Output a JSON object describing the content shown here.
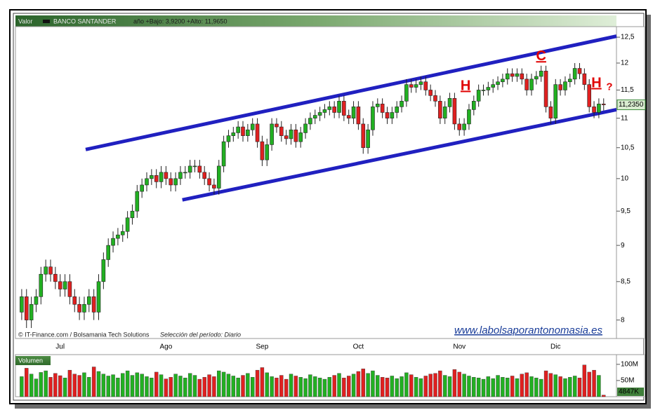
{
  "chart_data": [
    {
      "type": "candlestick",
      "label": "Valor",
      "title": "BANCO SANTANDER",
      "subtitle": "año +Bajo: 3,9200 +Alto: 11,9650",
      "footer": "© IT-Finance.com / Bolsamania Tech Solutions",
      "period": "Selección del período: Diario",
      "watermark": "www.labolsaporantonomasia.es",
      "log_scale": true,
      "up_color": "#22b022",
      "down_color": "#e02020",
      "line_color": "#2020c0",
      "annotation_color": "#e00000",
      "ylim": [
        7.77,
        12.71
      ],
      "yticks": [
        8,
        {
          "value": 8.5,
          "label": "8,5"
        },
        9,
        {
          "value": 9.5,
          "label": "9,5"
        },
        10,
        {
          "value": 10.5,
          "label": "10,5"
        },
        11,
        {
          "value": 11.5,
          "label": "11,5"
        },
        12,
        {
          "value": 12.5,
          "label": "12,5"
        }
      ],
      "categories": [
        null,
        null,
        null,
        null,
        null,
        null,
        null,
        null,
        "Jul",
        null,
        null,
        null,
        null,
        null,
        null,
        null,
        null,
        null,
        null,
        null,
        null,
        null,
        null,
        null,
        null,
        null,
        null,
        null,
        null,
        null,
        "Ago",
        null,
        null,
        null,
        null,
        null,
        null,
        null,
        null,
        null,
        null,
        null,
        null,
        null,
        null,
        null,
        null,
        null,
        null,
        null,
        "Sep",
        null,
        null,
        null,
        null,
        null,
        null,
        null,
        null,
        null,
        null,
        null,
        null,
        null,
        null,
        null,
        null,
        null,
        null,
        null,
        "Oct",
        null,
        null,
        null,
        null,
        null,
        null,
        null,
        null,
        null,
        null,
        null,
        null,
        null,
        null,
        null,
        null,
        null,
        null,
        null,
        null,
        "Nov",
        null,
        null,
        null,
        null,
        null,
        null,
        null,
        null,
        null,
        null,
        null,
        null,
        null,
        null,
        null,
        null,
        null,
        null,
        null,
        "Dic",
        null,
        null,
        null,
        null,
        null,
        null,
        null,
        null,
        null,
        null
      ],
      "open": [
        8.1,
        8.3,
        8.0,
        8.2,
        8.3,
        8.6,
        8.7,
        8.6,
        8.5,
        8.4,
        8.5,
        8.3,
        8.2,
        8.1,
        8.2,
        8.3,
        8.1,
        8.5,
        8.8,
        9.0,
        9.1,
        9.15,
        9.2,
        9.4,
        9.5,
        9.8,
        9.9,
        10.0,
        10.05,
        9.95,
        10.1,
        10.0,
        9.9,
        10.0,
        10.1,
        10.1,
        10.2,
        10.2,
        10.1,
        10.0,
        9.9,
        9.85,
        10.2,
        10.6,
        10.7,
        10.75,
        10.85,
        10.7,
        10.8,
        10.9,
        10.6,
        10.3,
        10.55,
        10.9,
        10.85,
        10.7,
        10.65,
        10.8,
        10.6,
        10.75,
        10.9,
        11.0,
        11.05,
        11.1,
        11.15,
        11.2,
        11.1,
        11.3,
        11.05,
        11.0,
        11.2,
        10.9,
        10.5,
        10.8,
        11.2,
        11.25,
        11.1,
        11.0,
        11.1,
        11.2,
        11.3,
        11.6,
        11.55,
        11.6,
        11.65,
        11.5,
        11.4,
        11.3,
        11.0,
        11.2,
        11.35,
        10.9,
        10.8,
        10.9,
        11.15,
        11.3,
        11.5,
        11.5,
        11.55,
        11.6,
        11.65,
        11.7,
        11.8,
        11.75,
        11.8,
        11.7,
        11.5,
        11.7,
        11.75,
        11.85,
        11.2,
        11.0,
        11.6,
        11.5,
        11.65,
        11.7,
        11.9,
        11.8,
        11.6,
        11.2,
        11.1,
        11.25
      ],
      "high": [
        8.4,
        8.4,
        8.3,
        8.4,
        8.7,
        8.8,
        8.8,
        8.7,
        8.6,
        8.6,
        8.6,
        8.4,
        8.3,
        8.3,
        8.4,
        8.4,
        8.6,
        8.9,
        9.1,
        9.2,
        9.25,
        9.3,
        9.5,
        9.6,
        9.9,
        10.0,
        10.1,
        10.15,
        10.15,
        10.2,
        10.2,
        10.1,
        10.1,
        10.2,
        10.2,
        10.3,
        10.3,
        10.3,
        10.2,
        10.1,
        10.0,
        10.3,
        10.7,
        10.8,
        10.85,
        10.95,
        10.95,
        10.9,
        11.0,
        11.0,
        10.7,
        10.65,
        11.0,
        11.0,
        10.95,
        10.8,
        10.9,
        10.9,
        10.85,
        11.0,
        11.1,
        11.15,
        11.2,
        11.25,
        11.3,
        11.3,
        11.4,
        11.4,
        11.15,
        11.3,
        11.3,
        11.0,
        10.9,
        11.3,
        11.35,
        11.35,
        11.2,
        11.2,
        11.3,
        11.4,
        11.7,
        11.7,
        11.7,
        11.75,
        11.75,
        11.6,
        11.5,
        11.4,
        11.3,
        11.45,
        11.45,
        11.0,
        11.0,
        11.25,
        11.4,
        11.6,
        11.6,
        11.65,
        11.7,
        11.75,
        11.8,
        11.9,
        11.9,
        11.9,
        11.9,
        11.8,
        11.8,
        11.85,
        11.95,
        11.95,
        11.3,
        11.7,
        11.7,
        11.75,
        11.8,
        12.0,
        12.0,
        11.9,
        11.7,
        11.3,
        11.35,
        11.35
      ],
      "low": [
        8.0,
        7.9,
        7.9,
        8.1,
        8.2,
        8.5,
        8.5,
        8.4,
        8.3,
        8.3,
        8.2,
        8.1,
        8.0,
        8.0,
        8.1,
        8.0,
        8.0,
        8.4,
        8.7,
        8.9,
        9.0,
        9.05,
        9.1,
        9.3,
        9.4,
        9.7,
        9.8,
        9.9,
        9.85,
        9.85,
        9.9,
        9.8,
        9.8,
        9.9,
        10.0,
        10.0,
        10.1,
        10.0,
        9.9,
        9.8,
        9.75,
        9.75,
        10.1,
        10.5,
        10.6,
        10.65,
        10.6,
        10.6,
        10.7,
        10.5,
        10.2,
        10.2,
        10.45,
        10.75,
        10.6,
        10.55,
        10.55,
        10.5,
        10.5,
        10.65,
        10.8,
        10.9,
        10.95,
        11.0,
        11.05,
        11.0,
        11.0,
        10.95,
        10.9,
        10.9,
        10.8,
        10.4,
        10.4,
        10.7,
        11.1,
        11.0,
        10.9,
        10.9,
        11.0,
        11.1,
        11.2,
        11.45,
        11.45,
        11.5,
        11.4,
        11.3,
        11.2,
        10.9,
        10.9,
        11.1,
        10.8,
        10.7,
        10.7,
        10.8,
        11.05,
        11.2,
        11.4,
        11.4,
        11.45,
        11.5,
        11.55,
        11.6,
        11.65,
        11.65,
        11.6,
        11.4,
        11.4,
        11.6,
        11.65,
        11.1,
        10.9,
        10.9,
        11.4,
        11.4,
        11.55,
        11.6,
        11.7,
        11.5,
        11.1,
        11.0,
        11.0,
        11.135
      ],
      "close": [
        8.3,
        8.0,
        8.2,
        8.3,
        8.6,
        8.7,
        8.6,
        8.5,
        8.4,
        8.5,
        8.3,
        8.2,
        8.1,
        8.2,
        8.3,
        8.1,
        8.5,
        8.8,
        9.0,
        9.1,
        9.15,
        9.2,
        9.4,
        9.5,
        9.8,
        9.9,
        10.0,
        10.05,
        9.95,
        10.1,
        10.0,
        9.9,
        10.0,
        10.1,
        10.1,
        10.2,
        10.2,
        10.1,
        10.0,
        9.9,
        9.85,
        10.2,
        10.6,
        10.7,
        10.75,
        10.85,
        10.7,
        10.8,
        10.9,
        10.6,
        10.3,
        10.55,
        10.9,
        10.85,
        10.7,
        10.65,
        10.8,
        10.6,
        10.75,
        10.9,
        11.0,
        11.05,
        11.1,
        11.15,
        11.2,
        11.1,
        11.3,
        11.05,
        11.0,
        11.2,
        10.9,
        10.5,
        10.8,
        11.2,
        11.25,
        11.1,
        11.0,
        11.1,
        11.2,
        11.3,
        11.6,
        11.55,
        11.6,
        11.65,
        11.5,
        11.4,
        11.3,
        11.0,
        11.2,
        11.35,
        10.9,
        10.8,
        10.9,
        11.15,
        11.3,
        11.5,
        11.5,
        11.55,
        11.6,
        11.65,
        11.7,
        11.8,
        11.75,
        11.8,
        11.7,
        11.5,
        11.7,
        11.75,
        11.85,
        11.2,
        11.0,
        11.6,
        11.5,
        11.65,
        11.7,
        11.9,
        11.8,
        11.6,
        11.2,
        11.1,
        11.25,
        11.235
      ],
      "price_marker": {
        "value": 11.235,
        "label": "11,2350"
      },
      "trendlines": [
        {
          "x": [
            13.3,
            124
          ],
          "y": [
            10.47,
            12.52
          ]
        },
        {
          "x": [
            33.4,
            124
          ],
          "y": [
            9.67,
            11.15
          ]
        }
      ],
      "annotations": [
        {
          "text": "C",
          "x": 108,
          "y": 12.05
        },
        {
          "text": "H",
          "x": 92.3,
          "y": 11.5
        },
        {
          "text": "H",
          "x": 119.5,
          "y": 11.55
        },
        {
          "text": "?",
          "x": 122.2,
          "y": 11.5
        }
      ]
    },
    {
      "type": "bar",
      "title": "Volumen",
      "ylim": [
        0,
        130
      ],
      "yticks": [
        {
          "value": 50,
          "label": "50M"
        },
        {
          "value": 100,
          "label": "100M"
        }
      ],
      "values": [
        62,
        88,
        70,
        55,
        75,
        80,
        60,
        72,
        65,
        58,
        82,
        70,
        66,
        74,
        60,
        92,
        78,
        70,
        64,
        68,
        58,
        72,
        80,
        66,
        74,
        70,
        62,
        58,
        76,
        68,
        55,
        60,
        70,
        64,
        58,
        72,
        66,
        54,
        60,
        68,
        62,
        80,
        76,
        70,
        64,
        58,
        66,
        72,
        60,
        82,
        90,
        74,
        62,
        58,
        66,
        54,
        70,
        64,
        60,
        56,
        68,
        62,
        58,
        54,
        60,
        66,
        72,
        58,
        64,
        70,
        78,
        86,
        72,
        80,
        66,
        60,
        58,
        64,
        56,
        62,
        74,
        68,
        60,
        56,
        64,
        70,
        72,
        80,
        66,
        62,
        84,
        76,
        70,
        64,
        60,
        58,
        54,
        62,
        56,
        66,
        60,
        58,
        64,
        56,
        70,
        74,
        62,
        58,
        54,
        80,
        72,
        68,
        62,
        56,
        60,
        64,
        58,
        98,
        76,
        82,
        66,
        4.847
      ],
      "current": {
        "value": 4.847,
        "label": "4847K"
      }
    }
  ]
}
